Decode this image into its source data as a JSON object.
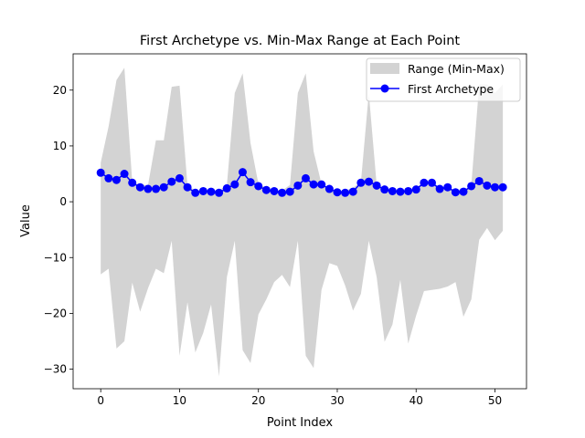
{
  "chart_data": {
    "type": "line",
    "title": "First Archetype vs. Min-Max Range at Each Point",
    "xlabel": "Point Index",
    "ylabel": "Value",
    "xlim": [
      -3.5,
      54
    ],
    "ylim": [
      -33.5,
      26.5
    ],
    "xticks": [
      0,
      10,
      20,
      30,
      40,
      50
    ],
    "yticks": [
      -30,
      -20,
      -10,
      0,
      10,
      20
    ],
    "xtick_labels": [
      "0",
      "10",
      "20",
      "30",
      "40",
      "50"
    ],
    "ytick_labels": [
      "−30",
      "−20",
      "−10",
      "0",
      "10",
      "20"
    ],
    "grid": false,
    "legend_position": "top-right",
    "x": [
      0,
      1,
      2,
      3,
      4,
      5,
      6,
      7,
      8,
      9,
      10,
      11,
      12,
      13,
      14,
      15,
      16,
      17,
      18,
      19,
      20,
      21,
      22,
      23,
      24,
      25,
      26,
      27,
      28,
      29,
      30,
      31,
      32,
      33,
      34,
      35,
      36,
      37,
      38,
      39,
      40,
      41,
      42,
      43,
      44,
      45,
      46,
      47,
      48,
      49,
      50,
      51
    ],
    "series": [
      {
        "name": "Range (Min-Max)",
        "kind": "fill_between",
        "color": "#d3d3d3",
        "min": [
          -13,
          -12,
          -26.3,
          -25,
          -14.5,
          -19.7,
          -15.5,
          -12,
          -12.8,
          -7,
          -27.6,
          -18,
          -27,
          -23.5,
          -18.4,
          -31.3,
          -13.5,
          -7,
          -26.6,
          -28.9,
          -20.2,
          -17.5,
          -14.4,
          -13.1,
          -15.3,
          -7,
          -27.6,
          -29.8,
          -15.8,
          -11,
          -11.5,
          -15,
          -19.5,
          -16.5,
          -7,
          -13.5,
          -25.1,
          -22,
          -14,
          -25.4,
          -20.4,
          -16,
          -15.8,
          -15.6,
          -15.2,
          -14.4,
          -20.6,
          -17.5,
          -6.8,
          -4.7,
          -6.9,
          -5.2
        ],
        "max": [
          7,
          13.5,
          21.8,
          24,
          3.5,
          3,
          3,
          11,
          11,
          20.6,
          20.8,
          3,
          2,
          2,
          2,
          2,
          3,
          19.5,
          23,
          10.5,
          3.2,
          2.5,
          2,
          2,
          3,
          19.5,
          23,
          9,
          3.2,
          2.4,
          2,
          2,
          2.5,
          3.5,
          19.5,
          3,
          2.5,
          2,
          2,
          2,
          2.5,
          3.5,
          3.5,
          2.5,
          2.6,
          2,
          2,
          3,
          21,
          21,
          19.5,
          21
        ]
      },
      {
        "name": "First Archetype",
        "kind": "line_markers",
        "color": "#0000ff",
        "values": [
          5.2,
          4.2,
          3.9,
          5,
          3.4,
          2.6,
          2.3,
          2.3,
          2.6,
          3.6,
          4.2,
          2.6,
          1.6,
          1.9,
          1.8,
          1.6,
          2.4,
          3.1,
          5.3,
          3.5,
          2.8,
          2.1,
          1.9,
          1.6,
          1.8,
          2.9,
          4.2,
          3.1,
          3.1,
          2.3,
          1.7,
          1.6,
          1.8,
          3.4,
          3.6,
          2.9,
          2.2,
          1.9,
          1.8,
          1.9,
          2.2,
          3.4,
          3.4,
          2.3,
          2.6,
          1.7,
          1.8,
          2.8,
          3.7,
          2.9,
          2.6,
          2.6
        ]
      }
    ]
  }
}
